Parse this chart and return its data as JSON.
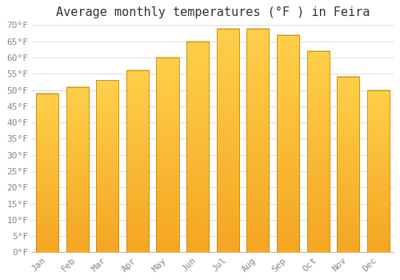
{
  "title": "Average monthly temperatures (°F ) in Feira",
  "months": [
    "Jan",
    "Feb",
    "Mar",
    "Apr",
    "May",
    "Jun",
    "Jul",
    "Aug",
    "Sep",
    "Oct",
    "Nov",
    "Dec"
  ],
  "values": [
    49,
    51,
    53,
    56,
    60,
    65,
    69,
    69,
    67,
    62,
    54,
    50
  ],
  "bar_color_top": "#FFD04A",
  "bar_color_bottom": "#F5A623",
  "bar_edge_color": "#C8880A",
  "background_color": "#FFFFFF",
  "grid_color": "#E0E0E0",
  "ylim": [
    0,
    70
  ],
  "yticks": [
    0,
    5,
    10,
    15,
    20,
    25,
    30,
    35,
    40,
    45,
    50,
    55,
    60,
    65,
    70
  ],
  "tick_label_color": "#888888",
  "title_fontsize": 11,
  "tick_fontsize": 8
}
